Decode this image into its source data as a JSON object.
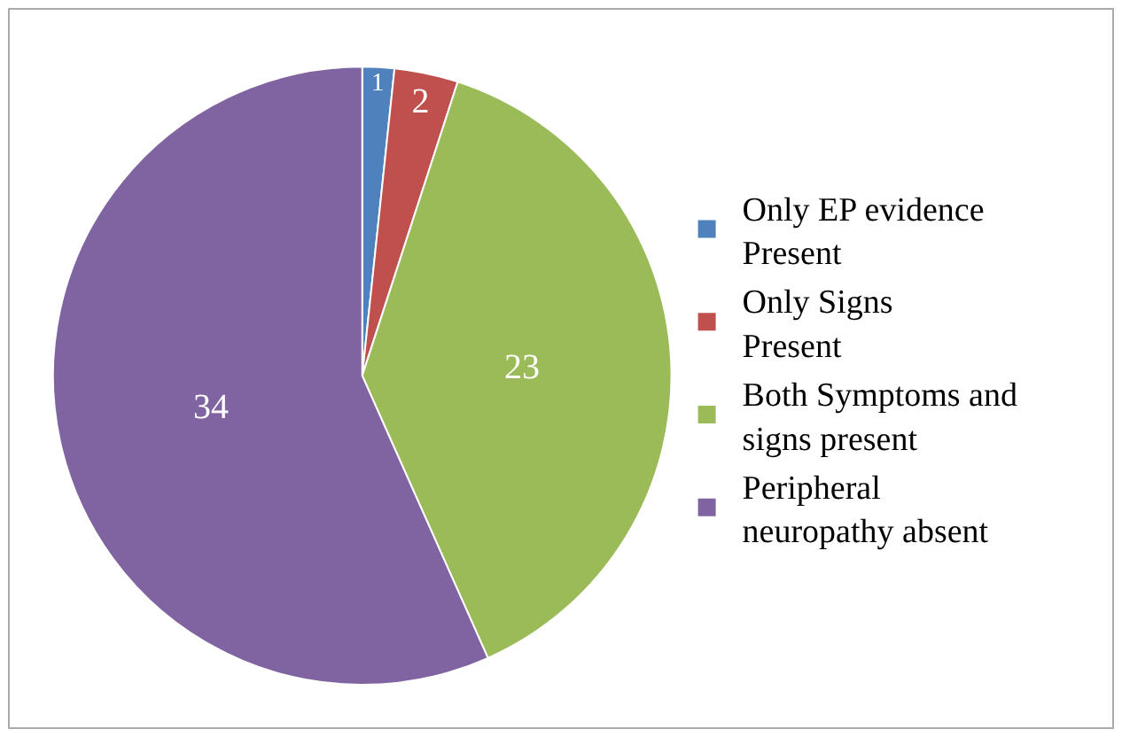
{
  "chart_data": {
    "type": "pie",
    "categories": [
      "Only EP evidence Present",
      "Only Signs Present",
      "Both Symptoms and signs present",
      "Peripheral neuropathy absent"
    ],
    "values": [
      1,
      2,
      23,
      34
    ],
    "colors": [
      "#4f81bd",
      "#c0504d",
      "#9bbb59",
      "#8064a2"
    ],
    "data_labels": true,
    "legend": "right"
  }
}
